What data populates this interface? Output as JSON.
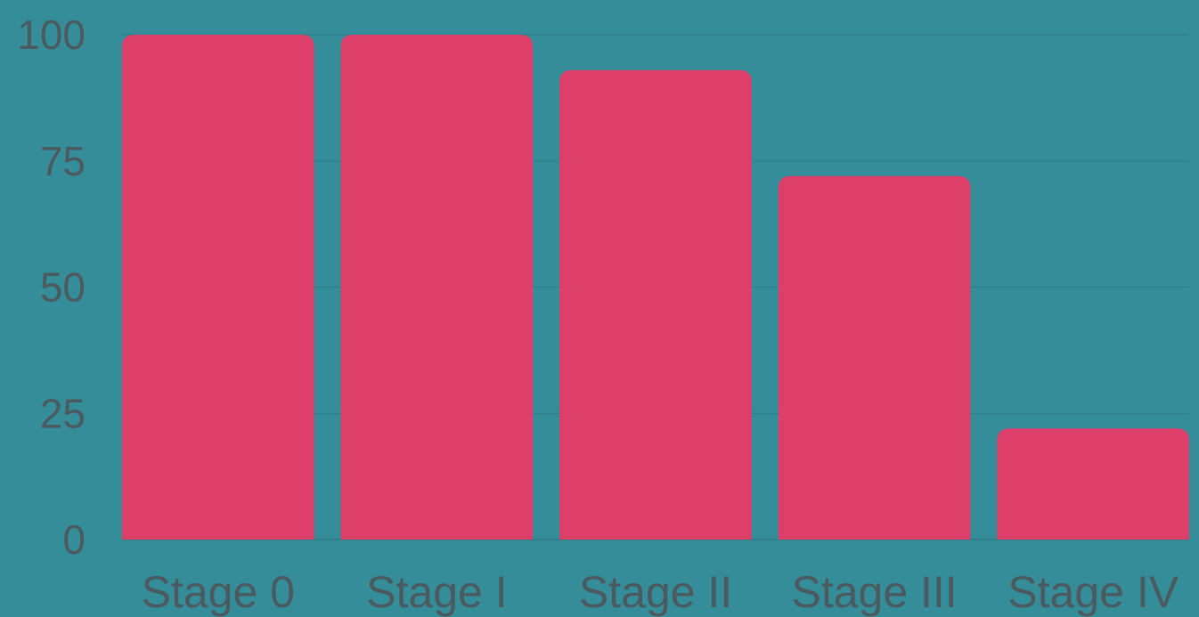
{
  "chart_data": {
    "type": "bar",
    "categories": [
      "Stage 0",
      "Stage I",
      "Stage II",
      "Stage III",
      "Stage IV"
    ],
    "values": [
      100,
      100,
      93,
      72,
      22
    ],
    "ylim": [
      0,
      100
    ],
    "yticks": [
      "0",
      "25",
      "50",
      "75",
      "100"
    ],
    "grid": true,
    "colors": {
      "background": "#358d9a",
      "bar": "#de3e6a",
      "text": "#4a5a5e",
      "grid": "#2f7c87",
      "axis": "#2a6f79"
    }
  }
}
